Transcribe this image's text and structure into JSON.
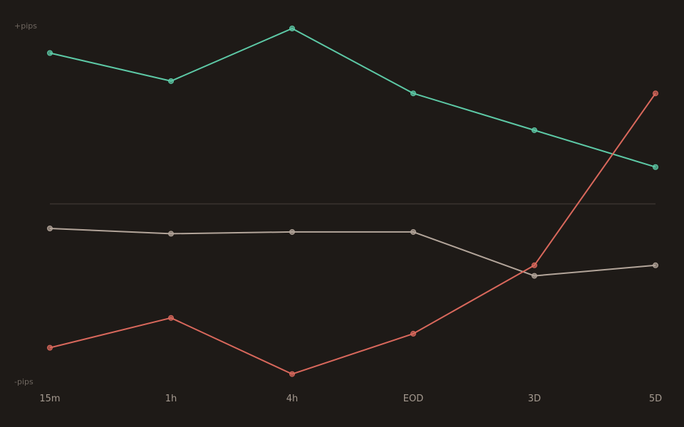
{
  "colors": {
    "background": "#1e1a17",
    "zero_line": "#3a3430",
    "axis_text": "#6f6760",
    "tick_text": "#a59a90"
  },
  "chart_data": {
    "type": "line",
    "title": "",
    "xlabel": "",
    "ylabel": "",
    "y_top_label": "+pips",
    "y_bottom_label": "-pips",
    "categories": [
      "15m",
      "1h",
      "4h",
      "EOD",
      "3D",
      "5D"
    ],
    "ylim": [
      -100,
      100
    ],
    "zero_line": 0,
    "grid": false,
    "legend": "none",
    "series": [
      {
        "color": "#5dc9a6",
        "values": [
          86,
          70,
          100,
          63,
          42,
          21
        ]
      },
      {
        "color": "#b3a59a",
        "values": [
          -14,
          -17,
          -16,
          -16,
          -41,
          -35
        ]
      },
      {
        "color": "#d9685c",
        "values": [
          -82,
          -65,
          -97,
          -74,
          -35,
          63
        ]
      }
    ]
  }
}
